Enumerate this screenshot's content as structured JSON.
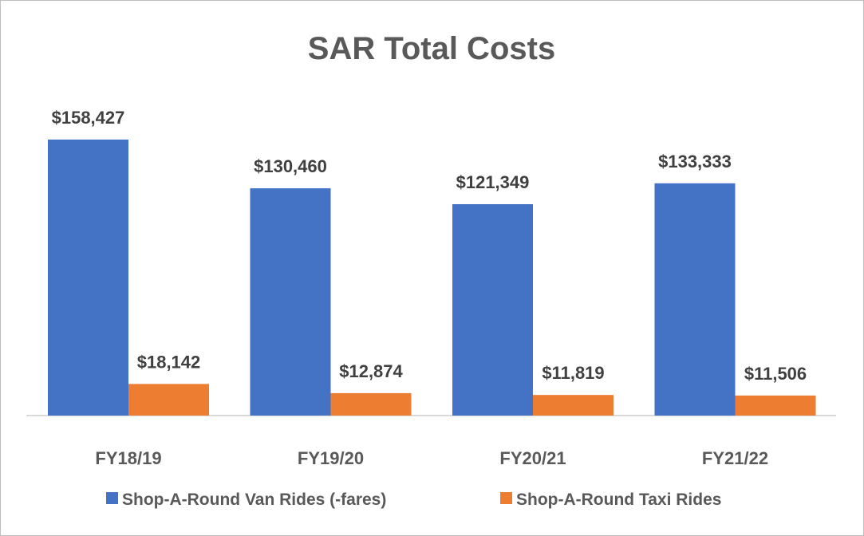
{
  "chart_data": {
    "type": "bar",
    "title": "SAR Total Costs",
    "categories": [
      "FY18/19",
      "FY19/20",
      "FY20/21",
      "FY21/22"
    ],
    "series": [
      {
        "name": "Shop-A-Round Van Rides (-fares)",
        "color": "#4472c4",
        "values": [
          158427,
          130460,
          121349,
          133333
        ],
        "labels": [
          "$158,427",
          "$130,460",
          "$121,349",
          "$133,333"
        ]
      },
      {
        "name": "Shop-A-Round Taxi Rides",
        "color": "#ed7d31",
        "values": [
          18142,
          12874,
          11819,
          11506
        ],
        "labels": [
          "$18,142",
          "$12,874",
          "$11,819",
          "$11,506"
        ]
      }
    ],
    "ylim": [
      0,
      160000
    ],
    "grid": false,
    "legend": "bottom"
  }
}
